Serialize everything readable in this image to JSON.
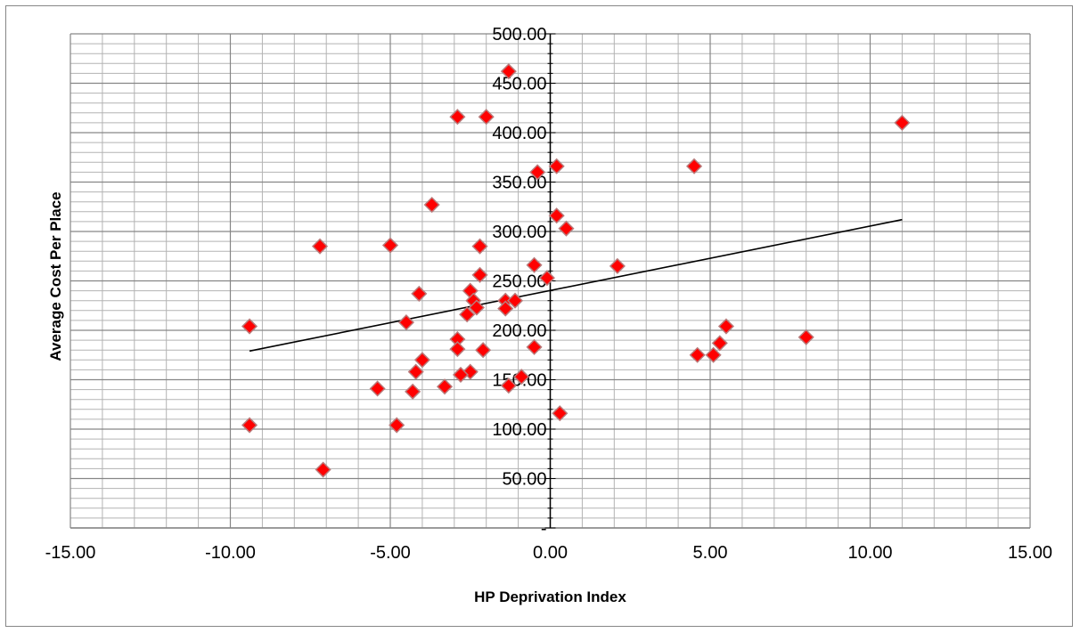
{
  "chart_data": {
    "type": "scatter",
    "xlabel": "HP Deprivation Index",
    "ylabel": "Average Cost Per Place",
    "xlim": [
      -15,
      15
    ],
    "ylim": [
      0,
      500
    ],
    "x_ticks": [
      -15,
      -10,
      -5,
      0,
      5,
      10,
      15
    ],
    "y_ticks": [
      0,
      50,
      100,
      150,
      200,
      250,
      300,
      350,
      400,
      450,
      500
    ],
    "x_tick_labels": [
      "-15.00",
      "-10.00",
      "-5.00",
      "0.00",
      "5.00",
      "10.00",
      "15.00"
    ],
    "y_tick_labels": [
      "-",
      "50.00",
      "100.00",
      "150.00",
      "200.00",
      "250.00",
      "300.00",
      "350.00",
      "400.00",
      "450.00",
      "500.00"
    ],
    "grid": {
      "major": true,
      "minor": true
    },
    "marker_color": "#ff0000",
    "marker_edge_color": "#b97a7a",
    "series": [
      {
        "points": [
          [
            -1.3,
            462
          ],
          [
            -2.9,
            416
          ],
          [
            -2.0,
            416
          ],
          [
            11.0,
            410
          ],
          [
            0.2,
            366
          ],
          [
            4.5,
            366
          ],
          [
            -0.4,
            360
          ],
          [
            -3.7,
            327
          ],
          [
            0.2,
            316
          ],
          [
            0.5,
            303
          ],
          [
            -7.2,
            285
          ],
          [
            -5.0,
            286
          ],
          [
            -2.2,
            285
          ],
          [
            -0.5,
            266
          ],
          [
            2.1,
            265
          ],
          [
            -2.2,
            256
          ],
          [
            -0.1,
            253
          ],
          [
            -2.5,
            240
          ],
          [
            -4.1,
            237
          ],
          [
            -2.4,
            230
          ],
          [
            -1.4,
            230
          ],
          [
            -1.1,
            230
          ],
          [
            -2.3,
            223
          ],
          [
            -1.4,
            222
          ],
          [
            -2.6,
            216
          ],
          [
            -9.4,
            204
          ],
          [
            -4.5,
            208
          ],
          [
            5.5,
            204
          ],
          [
            8.0,
            193
          ],
          [
            -2.9,
            191
          ],
          [
            5.3,
            187
          ],
          [
            -0.5,
            183
          ],
          [
            -2.9,
            181
          ],
          [
            -2.1,
            180
          ],
          [
            4.6,
            175
          ],
          [
            5.1,
            175
          ],
          [
            -4.0,
            170
          ],
          [
            -4.2,
            158
          ],
          [
            -2.5,
            158
          ],
          [
            -2.8,
            155
          ],
          [
            -0.9,
            153
          ],
          [
            -1.3,
            144
          ],
          [
            -3.3,
            143
          ],
          [
            -5.4,
            141
          ],
          [
            -4.3,
            138
          ],
          [
            0.3,
            116
          ],
          [
            -9.4,
            104
          ],
          [
            -4.8,
            104
          ],
          [
            -7.1,
            59
          ]
        ]
      }
    ],
    "trendline": {
      "x": [
        -9.4,
        11.0
      ],
      "y": [
        179,
        312
      ]
    }
  }
}
